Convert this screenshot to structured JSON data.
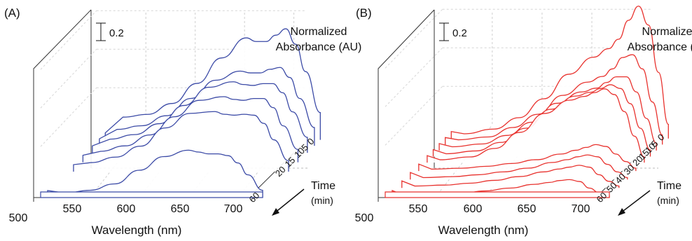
{
  "chart_data": [
    {
      "type": "line",
      "panel_label": "(A)",
      "color": "#3b4aa6",
      "xlabel": "Wavelength (nm)",
      "ylabel": [
        "Normalized",
        "Absorbance (AU)"
      ],
      "zlabel": [
        "Time",
        "(min)"
      ],
      "x_ticks": [
        "500",
        "550",
        "600",
        "650",
        "700"
      ],
      "xlim": [
        500,
        725
      ],
      "scale_bar": "0.2",
      "series": [
        {
          "name": "0",
          "x": [
            525,
            550,
            575,
            600,
            625,
            650,
            660,
            670,
            680,
            690,
            700,
            710,
            725
          ],
          "y": [
            0.25,
            0.28,
            0.4,
            0.62,
            0.9,
            1.12,
            1.08,
            1.08,
            1.15,
            1.22,
            1.05,
            0.75,
            0.3
          ]
        },
        {
          "name": "5",
          "x": [
            525,
            550,
            575,
            600,
            625,
            650,
            660,
            670,
            680,
            690,
            700,
            710,
            725
          ],
          "y": [
            0.18,
            0.22,
            0.33,
            0.52,
            0.72,
            0.82,
            0.8,
            0.8,
            0.84,
            0.86,
            0.75,
            0.52,
            0.2
          ]
        },
        {
          "name": "10",
          "x": [
            525,
            550,
            575,
            600,
            625,
            650,
            660,
            670,
            680,
            690,
            700,
            710,
            725
          ],
          "y": [
            0.15,
            0.2,
            0.32,
            0.52,
            0.72,
            0.78,
            0.75,
            0.74,
            0.76,
            0.76,
            0.66,
            0.45,
            0.17
          ]
        },
        {
          "name": "15",
          "x": [
            525,
            550,
            575,
            600,
            625,
            650,
            660,
            670,
            680,
            690,
            700,
            710,
            725
          ],
          "y": [
            0.12,
            0.18,
            0.3,
            0.5,
            0.68,
            0.72,
            0.69,
            0.68,
            0.7,
            0.7,
            0.6,
            0.4,
            0.14
          ]
        },
        {
          "name": "20",
          "x": [
            525,
            550,
            575,
            600,
            625,
            650,
            660,
            670,
            680,
            690,
            700,
            710,
            725
          ],
          "y": [
            0.1,
            0.16,
            0.28,
            0.48,
            0.64,
            0.66,
            0.63,
            0.62,
            0.63,
            0.62,
            0.53,
            0.35,
            0.12
          ]
        },
        {
          "name": "60",
          "x": [
            525,
            550,
            575,
            600,
            625,
            650,
            660,
            670,
            680,
            690,
            700,
            710,
            725
          ],
          "y": [
            0.05,
            0.08,
            0.15,
            0.3,
            0.45,
            0.52,
            0.5,
            0.48,
            0.48,
            0.46,
            0.38,
            0.25,
            0.08
          ]
        }
      ],
      "baseline": {
        "x": [
          500,
          725
        ],
        "y": [
          0,
          0
        ]
      }
    },
    {
      "type": "line",
      "panel_label": "(B)",
      "color": "#e8322e",
      "xlabel": "Wavelength (nm)",
      "ylabel": [
        "Normalized",
        "Absorbance (AU)"
      ],
      "zlabel": [
        "Time",
        "(min)"
      ],
      "x_ticks": [
        "500",
        "550",
        "600",
        "650",
        "700"
      ],
      "xlim": [
        500,
        725
      ],
      "scale_bar": "0.2",
      "series": [
        {
          "name": "0",
          "x": [
            520,
            550,
            575,
            600,
            625,
            650,
            665,
            675,
            685,
            695,
            705,
            715,
            725
          ],
          "y": [
            0.05,
            0.1,
            0.22,
            0.42,
            0.68,
            0.86,
            0.95,
            1.05,
            1.25,
            1.4,
            1.2,
            0.7,
            0.15
          ]
        },
        {
          "name": "5",
          "x": [
            520,
            550,
            575,
            600,
            625,
            650,
            665,
            675,
            685,
            695,
            705,
            715,
            725
          ],
          "y": [
            0.05,
            0.08,
            0.18,
            0.32,
            0.52,
            0.66,
            0.72,
            0.8,
            0.92,
            0.95,
            0.8,
            0.45,
            0.1
          ]
        },
        {
          "name": "10",
          "x": [
            520,
            550,
            575,
            600,
            625,
            650,
            665,
            675,
            685,
            695,
            705,
            715,
            725
          ],
          "y": [
            0.04,
            0.07,
            0.16,
            0.3,
            0.5,
            0.62,
            0.66,
            0.72,
            0.78,
            0.78,
            0.62,
            0.34,
            0.08
          ]
        },
        {
          "name": "15",
          "x": [
            520,
            550,
            575,
            600,
            625,
            650,
            665,
            675,
            685,
            695,
            705,
            715,
            725
          ],
          "y": [
            0.03,
            0.06,
            0.15,
            0.3,
            0.5,
            0.64,
            0.68,
            0.72,
            0.76,
            0.72,
            0.56,
            0.3,
            0.07
          ]
        },
        {
          "name": "20",
          "x": [
            520,
            550,
            575,
            600,
            625,
            650,
            665,
            675,
            685,
            695,
            705,
            715,
            725
          ],
          "y": [
            0.03,
            0.06,
            0.15,
            0.32,
            0.52,
            0.66,
            0.7,
            0.74,
            0.78,
            0.72,
            0.54,
            0.28,
            0.06
          ]
        },
        {
          "name": "30",
          "x": [
            520,
            550,
            575,
            600,
            625,
            650,
            665,
            675,
            685,
            695,
            705,
            715,
            725
          ],
          "y": [
            0.02,
            0.03,
            0.05,
            0.08,
            0.12,
            0.18,
            0.22,
            0.25,
            0.28,
            0.26,
            0.18,
            0.1,
            0.03
          ]
        },
        {
          "name": "40",
          "x": [
            520,
            550,
            575,
            600,
            625,
            650,
            665,
            675,
            685,
            695,
            705,
            715,
            725
          ],
          "y": [
            0.02,
            0.03,
            0.05,
            0.08,
            0.12,
            0.18,
            0.21,
            0.24,
            0.26,
            0.24,
            0.16,
            0.08,
            0.02
          ]
        },
        {
          "name": "50",
          "x": [
            520,
            550,
            575,
            600,
            625,
            650,
            665,
            675,
            685,
            695,
            705,
            715,
            725
          ],
          "y": [
            0.02,
            0.03,
            0.05,
            0.08,
            0.12,
            0.17,
            0.2,
            0.22,
            0.24,
            0.22,
            0.14,
            0.07,
            0.02
          ]
        },
        {
          "name": "60",
          "x": [
            520,
            550,
            575,
            600,
            625,
            650,
            665,
            675,
            685,
            695,
            705,
            715,
            725
          ],
          "y": [
            0.02,
            0.03,
            0.04,
            0.07,
            0.1,
            0.14,
            0.16,
            0.18,
            0.19,
            0.17,
            0.1,
            0.05,
            0.02
          ]
        }
      ],
      "baseline": {
        "x": [
          500,
          725
        ],
        "y": [
          0,
          0
        ]
      }
    }
  ]
}
